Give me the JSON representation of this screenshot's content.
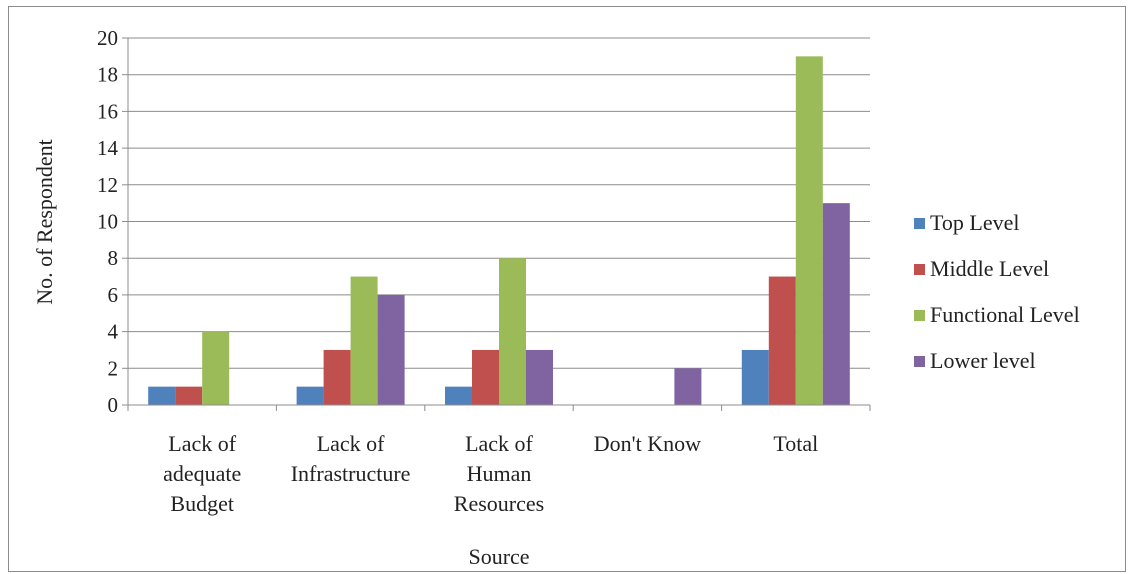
{
  "chart_data": {
    "type": "bar",
    "xlabel": "Source",
    "ylabel": "No. of Respondent",
    "ylim": [
      0,
      20
    ],
    "yticks": [
      "0",
      "2",
      "4",
      "6",
      "8",
      "10",
      "12",
      "14",
      "16",
      "18",
      "20"
    ],
    "grid": true,
    "legend_position": "right",
    "categories": [
      [
        "Lack of",
        "adequate",
        "Budget"
      ],
      [
        "Lack of",
        "Infrastructure"
      ],
      [
        "Lack of",
        "Human",
        "Resources"
      ],
      [
        "Don't Know"
      ],
      [
        "Total"
      ]
    ],
    "series": [
      {
        "name": "Top Level",
        "color": "#4f81bd",
        "values": [
          1,
          1,
          1,
          0,
          3
        ]
      },
      {
        "name": "Middle Level",
        "color": "#c0504d",
        "values": [
          1,
          3,
          3,
          0,
          7
        ]
      },
      {
        "name": "Functional Level",
        "color": "#9bbb59",
        "values": [
          4,
          7,
          8,
          0,
          19
        ]
      },
      {
        "name": "Lower level",
        "color": "#8064a2",
        "values": [
          0,
          6,
          3,
          2,
          11
        ]
      }
    ]
  }
}
